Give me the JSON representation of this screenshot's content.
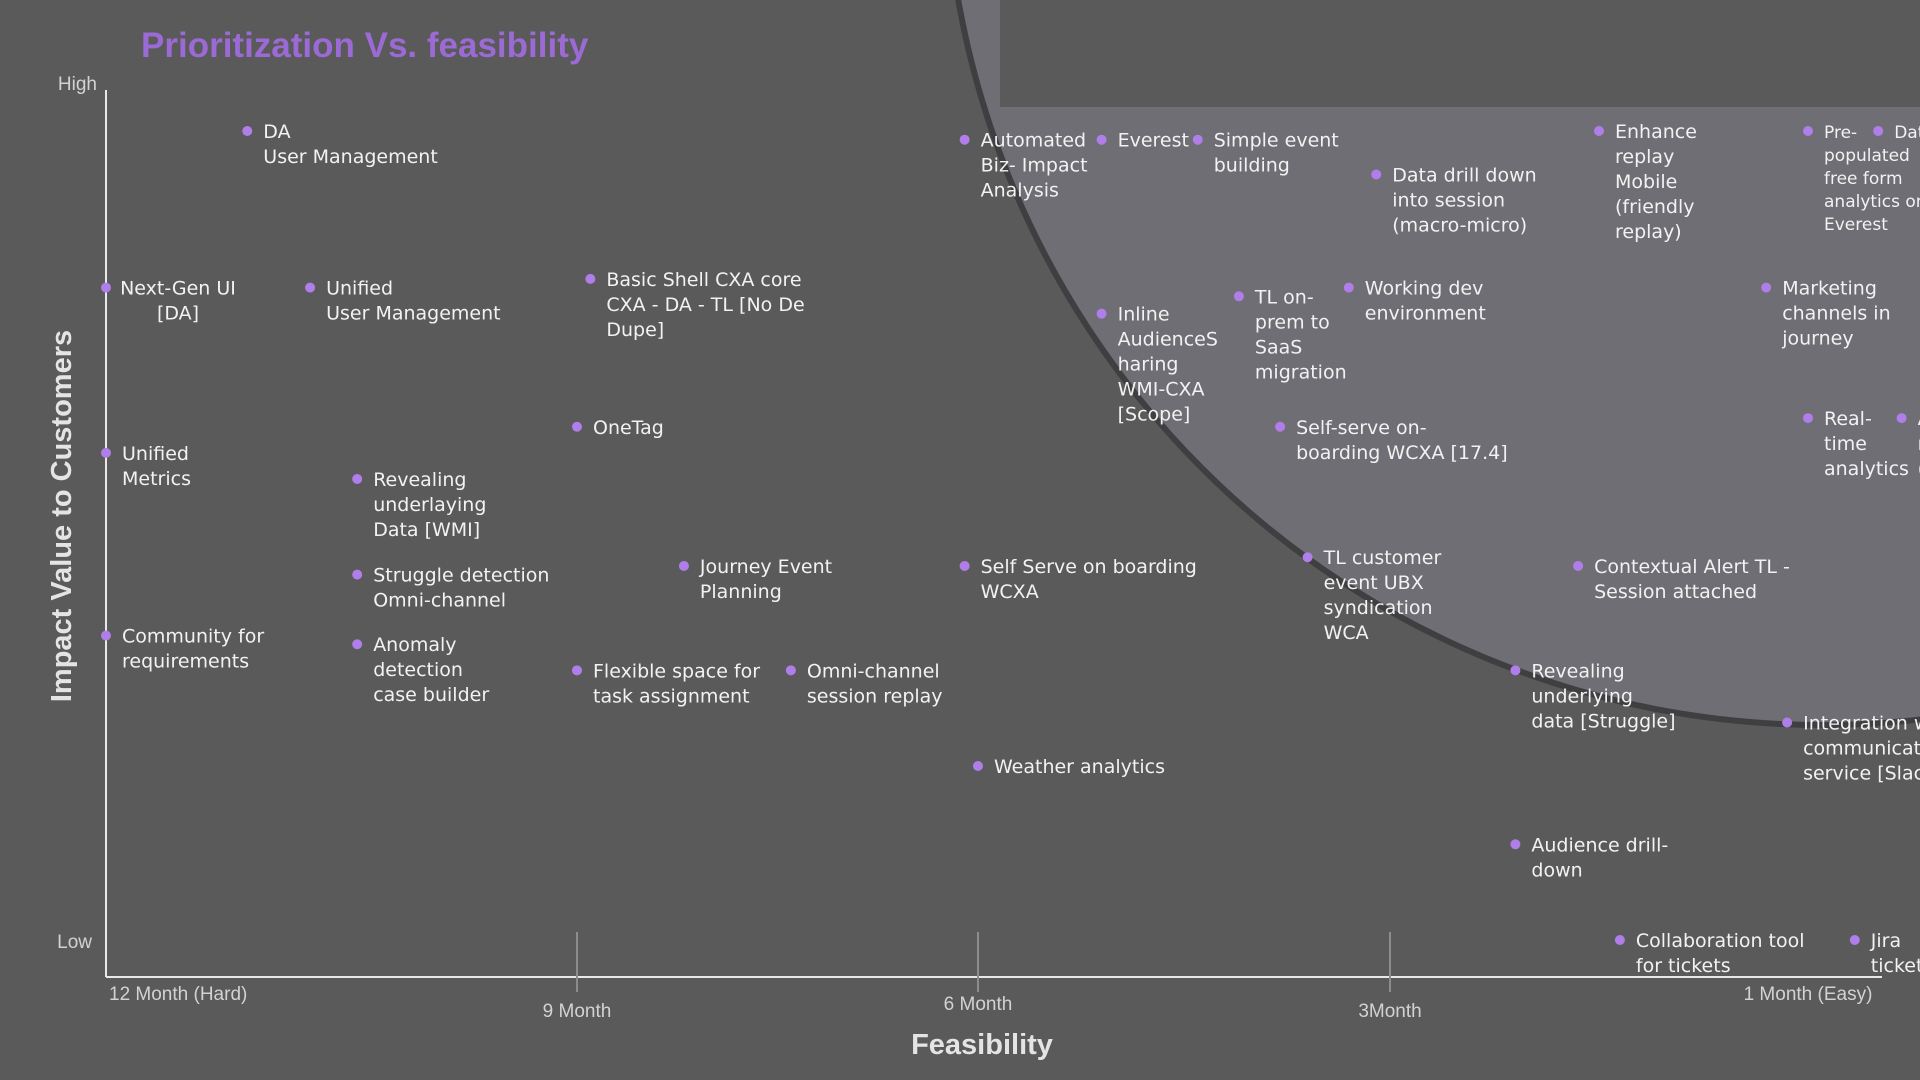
{
  "chart_data": {
    "type": "scatter",
    "title": "Prioritization Vs. feasibility",
    "xlabel": "Feasibility",
    "ylabel": "Impact Value to Customers",
    "y_ticks": [
      "High",
      "Low"
    ],
    "x_ticks": [
      {
        "label": "12 Month (Hard)",
        "month": 12
      },
      {
        "label": "9 Month",
        "month": 9
      },
      {
        "label": "6 Month",
        "month": 6
      },
      {
        "label": "3Month",
        "month": 3
      },
      {
        "label": "1 Month (Easy)",
        "month": 1
      }
    ],
    "x_axis": "months to deliver, reversed (12 = hard at left, 1 = easy at right)",
    "y_axis": "impact, 0 = Low, 100 = High",
    "highlight_region": "top-right quadrant (high impact, high feasibility)",
    "colors": {
      "background": "#5a5a5a",
      "point": "#b07ee8",
      "title": "#9b6ad4",
      "highlight": "#6e6e74"
    },
    "points": [
      {
        "x": 11.1,
        "y": 93,
        "label": [
          "DA",
          "User Management"
        ]
      },
      {
        "x": 12.0,
        "y": 75,
        "label": [
          "Next-Gen UI",
          "[DA]"
        ],
        "align": "center"
      },
      {
        "x": 10.7,
        "y": 75,
        "label": [
          "Unified",
          "User Management"
        ]
      },
      {
        "x": 12.0,
        "y": 56,
        "label": [
          "Unified",
          "Metrics"
        ]
      },
      {
        "x": 10.4,
        "y": 53,
        "label": [
          "Revealing",
          "underlaying",
          "Data [WMI]"
        ]
      },
      {
        "x": 10.4,
        "y": 42,
        "label": [
          "Struggle detection",
          "Omni-channel"
        ]
      },
      {
        "x": 12.0,
        "y": 35,
        "label": [
          "Community for",
          "requirements"
        ]
      },
      {
        "x": 10.4,
        "y": 34,
        "label": [
          "Anomaly",
          "detection",
          "case builder"
        ]
      },
      {
        "x": 8.9,
        "y": 76,
        "label": [
          "Basic Shell CXA core",
          "CXA - DA - TL [No De",
          "Dupe]"
        ]
      },
      {
        "x": 9.0,
        "y": 59,
        "label": [
          "OneTag"
        ]
      },
      {
        "x": 8.2,
        "y": 43,
        "label": [
          "Journey Event",
          "Planning"
        ]
      },
      {
        "x": 9.0,
        "y": 31,
        "label": [
          "Flexible space for",
          "task assignment"
        ]
      },
      {
        "x": 7.4,
        "y": 31,
        "label": [
          "Omni-channel",
          "session replay"
        ]
      },
      {
        "x": 6.1,
        "y": 92,
        "label": [
          "Automated",
          "Biz- Impact",
          "Analysis"
        ]
      },
      {
        "x": 6.1,
        "y": 43,
        "label": [
          "Self Serve on boarding",
          "WCXA"
        ]
      },
      {
        "x": 6.0,
        "y": 20,
        "label": [
          "Weather analytics"
        ]
      },
      {
        "x": 5.1,
        "y": 92,
        "label": [
          "Everest"
        ]
      },
      {
        "x": 4.4,
        "y": 92,
        "label": [
          "Simple event",
          "building"
        ]
      },
      {
        "x": 5.1,
        "y": 72,
        "label": [
          "Inline",
          "AudienceS",
          "haring",
          "WMI-CXA",
          "[Scope]"
        ]
      },
      {
        "x": 4.1,
        "y": 74,
        "label": [
          "TL on-",
          "prem to",
          "SaaS",
          "migration"
        ]
      },
      {
        "x": 3.3,
        "y": 75,
        "label": [
          "Working dev",
          "environment"
        ]
      },
      {
        "x": 3.8,
        "y": 59,
        "label": [
          "Self-serve on-",
          "boarding WCXA [17.4]"
        ]
      },
      {
        "x": 3.1,
        "y": 88,
        "label": [
          "Data drill down",
          "into session",
          "(macro-micro)"
        ]
      },
      {
        "x": 3.6,
        "y": 44,
        "label": [
          "TL customer",
          "event UBX",
          "syndication",
          "WCA"
        ]
      },
      {
        "x": 2.0,
        "y": 93,
        "label": [
          "Enhance",
          "replay",
          "Mobile",
          "(friendly",
          "replay)"
        ]
      },
      {
        "x": 1.0,
        "y": 93,
        "label": [
          "Pre-",
          "populated",
          "free form",
          "analytics on",
          "Everest"
        ],
        "small": true
      },
      {
        "x": 0.4,
        "y": 93,
        "label": [
          "Data export [TL]"
        ],
        "small": true
      },
      {
        "x": 1.2,
        "y": 75,
        "label": [
          "Marketing",
          "channels in",
          "journey"
        ]
      },
      {
        "x": 1.0,
        "y": 60,
        "label": [
          "Real-",
          "time",
          "analytics"
        ]
      },
      {
        "x": 0.2,
        "y": 60,
        "label": [
          "Audience",
          "metadata",
          "(description)"
        ]
      },
      {
        "x": 2.1,
        "y": 43,
        "label": [
          "Contextual Alert TL -",
          "Session attached"
        ]
      },
      {
        "x": 2.4,
        "y": 31,
        "label": [
          "Revealing",
          "underlying",
          "data [Struggle]"
        ]
      },
      {
        "x": 1.1,
        "y": 25,
        "label": [
          "Integration within",
          "communication",
          "service [Slack]"
        ]
      },
      {
        "x": 2.4,
        "y": 11,
        "label": [
          "Audience drill-",
          "down"
        ]
      },
      {
        "x": 1.9,
        "y": 0,
        "label": [
          "Collaboration tool",
          "for tickets"
        ]
      },
      {
        "x": 0.6,
        "y": 0,
        "label": [
          "Jira",
          "ticketing"
        ]
      }
    ]
  }
}
